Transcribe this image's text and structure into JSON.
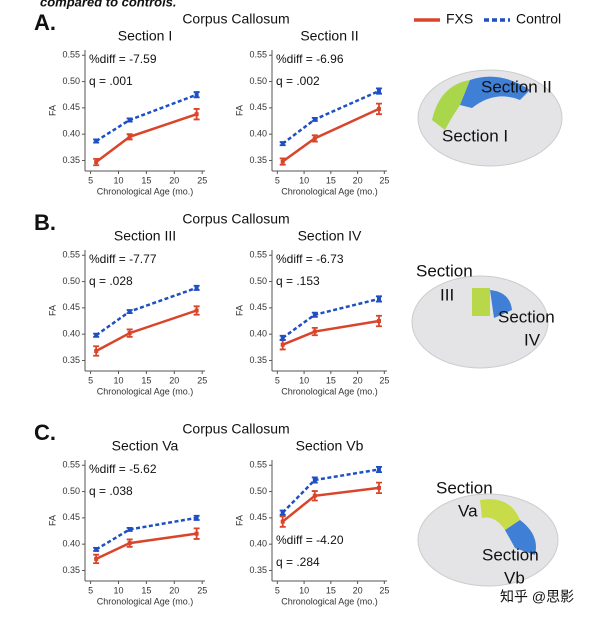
{
  "caption": "compared to controls.",
  "watermark": "知乎 @思影",
  "panels": [
    {
      "letter": "A.",
      "title": "Corpus Callosum",
      "brain_labels": [
        "Section II",
        "Section I"
      ]
    },
    {
      "letter": "B.",
      "title": "Corpus Callosum",
      "brain_labels": [
        "Section",
        "III",
        "Section",
        "IV"
      ]
    },
    {
      "letter": "C.",
      "title": "Corpus Callosum",
      "brain_labels": [
        "Section",
        "Va",
        "Section",
        "Vb"
      ]
    }
  ],
  "chart_data": [
    {
      "type": "line",
      "title": "Section I",
      "annotations": [
        "%diff = -7.59",
        "q = .001"
      ],
      "annotation_corner": "top-left",
      "xlabel": "Chronological Age (mo.)",
      "ylabel": "FA",
      "x": [
        6,
        12,
        24
      ],
      "xlim": [
        4,
        25.5
      ],
      "xticks": [
        5,
        10,
        15,
        20,
        25
      ],
      "ylim": [
        0.33,
        0.56
      ],
      "yticks": [
        0.35,
        {
          "value": 0.4,
          "label": "0.40"
        },
        0.45,
        {
          "value": 0.5,
          "label": "0.50"
        },
        0.55
      ],
      "series": [
        {
          "name": "FXS",
          "color": "#d9452a",
          "style": "solid",
          "values": [
            0.347,
            0.395,
            0.438
          ],
          "errors": [
            0.006,
            0.005,
            0.01
          ]
        },
        {
          "name": "Control",
          "color": "#1f4fc4",
          "style": "dashed",
          "values": [
            0.387,
            0.427,
            0.475
          ],
          "errors": [
            0.003,
            0.003,
            0.005
          ]
        }
      ]
    },
    {
      "type": "line",
      "title": "Section II",
      "annotations": [
        "%diff = -6.96",
        "q = .002"
      ],
      "annotation_corner": "top-left",
      "xlabel": "Chronological Age (mo.)",
      "ylabel": "FA",
      "x": [
        6,
        12,
        24
      ],
      "xlim": [
        4,
        25.5
      ],
      "xticks": [
        5,
        10,
        15,
        20,
        25
      ],
      "ylim": [
        0.33,
        0.56
      ],
      "yticks": [
        0.35,
        {
          "value": 0.4,
          "label": "0.40"
        },
        0.45,
        {
          "value": 0.5,
          "label": "0.50"
        },
        0.55
      ],
      "series": [
        {
          "name": "FXS",
          "color": "#d9452a",
          "style": "solid",
          "values": [
            0.348,
            0.392,
            0.448
          ],
          "errors": [
            0.006,
            0.006,
            0.01
          ]
        },
        {
          "name": "Control",
          "color": "#1f4fc4",
          "style": "dashed",
          "values": [
            0.382,
            0.428,
            0.482
          ],
          "errors": [
            0.003,
            0.003,
            0.005
          ]
        }
      ]
    },
    {
      "type": "line",
      "title": "Section III",
      "annotations": [
        "%diff = -7.77",
        "q = .028"
      ],
      "annotation_corner": "top-left",
      "xlabel": "Chronological Age (mo.)",
      "ylabel": "FA",
      "x": [
        6,
        12,
        24
      ],
      "xlim": [
        4,
        25.5
      ],
      "xticks": [
        5,
        10,
        15,
        20,
        25
      ],
      "ylim": [
        0.33,
        0.56
      ],
      "yticks": [
        0.35,
        {
          "value": 0.4,
          "label": "0.40"
        },
        0.45,
        {
          "value": 0.5,
          "label": "0.50"
        },
        0.55
      ],
      "series": [
        {
          "name": "FXS",
          "color": "#d9452a",
          "style": "solid",
          "values": [
            0.368,
            0.402,
            0.445
          ],
          "errors": [
            0.009,
            0.007,
            0.008
          ]
        },
        {
          "name": "Control",
          "color": "#1f4fc4",
          "style": "dashed",
          "values": [
            0.398,
            0.443,
            0.488
          ],
          "errors": [
            0.003,
            0.003,
            0.004
          ]
        }
      ]
    },
    {
      "type": "line",
      "title": "Section IV",
      "annotations": [
        "%diff = -6.73",
        "q = .153"
      ],
      "annotation_corner": "top-left",
      "xlabel": "Chronological Age (mo.)",
      "ylabel": "FA",
      "x": [
        6,
        12,
        24
      ],
      "xlim": [
        4,
        25.5
      ],
      "xticks": [
        5,
        10,
        15,
        20,
        25
      ],
      "ylim": [
        0.33,
        0.56
      ],
      "yticks": [
        0.35,
        {
          "value": 0.4,
          "label": "0.40"
        },
        0.45,
        {
          "value": 0.5,
          "label": "0.50"
        },
        0.55
      ],
      "series": [
        {
          "name": "FXS",
          "color": "#d9452a",
          "style": "solid",
          "values": [
            0.38,
            0.405,
            0.425
          ],
          "errors": [
            0.009,
            0.007,
            0.01
          ]
        },
        {
          "name": "Control",
          "color": "#1f4fc4",
          "style": "dashed",
          "values": [
            0.393,
            0.437,
            0.467
          ],
          "errors": [
            0.004,
            0.004,
            0.005
          ]
        }
      ]
    },
    {
      "type": "line",
      "title": "Section Va",
      "annotations": [
        "%diff = -5.62",
        "q = .038"
      ],
      "annotation_corner": "top-left",
      "xlabel": "Chronological Age (mo.)",
      "ylabel": "FA",
      "x": [
        6,
        12,
        24
      ],
      "xlim": [
        4,
        25.5
      ],
      "xticks": [
        5,
        10,
        15,
        20,
        25
      ],
      "ylim": [
        0.33,
        0.56
      ],
      "yticks": [
        0.35,
        {
          "value": 0.4,
          "label": "0.40"
        },
        0.45,
        {
          "value": 0.5,
          "label": "0.50"
        },
        0.55
      ],
      "series": [
        {
          "name": "FXS",
          "color": "#d9452a",
          "style": "solid",
          "values": [
            0.372,
            0.402,
            0.42
          ],
          "errors": [
            0.008,
            0.007,
            0.01
          ]
        },
        {
          "name": "Control",
          "color": "#1f4fc4",
          "style": "dashed",
          "values": [
            0.39,
            0.428,
            0.45
          ],
          "errors": [
            0.003,
            0.003,
            0.004
          ]
        }
      ]
    },
    {
      "type": "line",
      "title": "Section Vb",
      "annotations": [
        "%diff = -4.20",
        "q = .284"
      ],
      "annotation_corner": "bottom-left",
      "xlabel": "Chronological Age (mo.)",
      "ylabel": "FA",
      "x": [
        6,
        12,
        24
      ],
      "xlim": [
        4,
        25.5
      ],
      "xticks": [
        5,
        10,
        15,
        20,
        25
      ],
      "ylim": [
        0.33,
        0.56
      ],
      "yticks": [
        0.35,
        {
          "value": 0.4,
          "label": "0.40"
        },
        0.45,
        {
          "value": 0.5,
          "label": "0.50"
        },
        0.55
      ],
      "series": [
        {
          "name": "FXS",
          "color": "#d9452a",
          "style": "solid",
          "values": [
            0.443,
            0.492,
            0.507
          ],
          "errors": [
            0.01,
            0.009,
            0.01
          ]
        },
        {
          "name": "Control",
          "color": "#1f4fc4",
          "style": "dashed",
          "values": [
            0.46,
            0.522,
            0.542
          ],
          "errors": [
            0.004,
            0.005,
            0.005
          ]
        }
      ]
    }
  ]
}
